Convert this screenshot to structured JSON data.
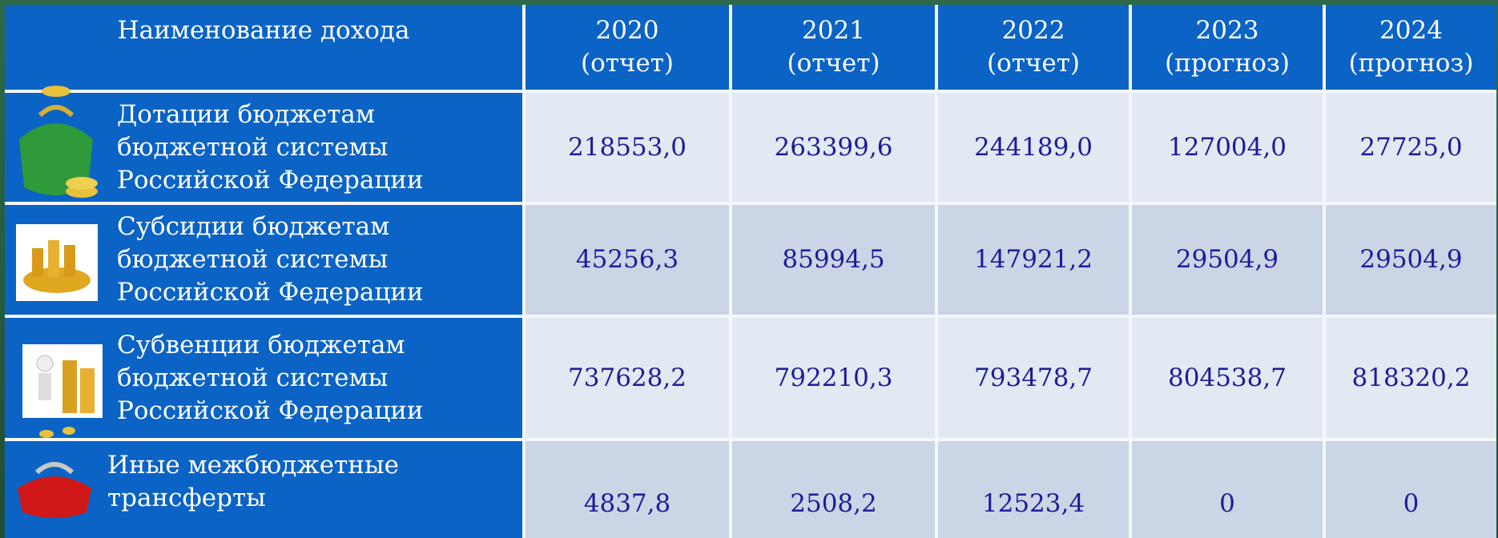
{
  "table": {
    "header": {
      "label": "Наименование дохода",
      "columns": [
        {
          "year": "2020",
          "note": "(отчет)"
        },
        {
          "year": "2021",
          "note": "(отчет)"
        },
        {
          "year": "2022",
          "note": "(отчет)"
        },
        {
          "year": "2023",
          "note": "(прогноз)"
        },
        {
          "year": "2024",
          "note": "(прогноз)"
        }
      ]
    },
    "rows": [
      {
        "label": [
          "Дотации бюджетам",
          "бюджетной системы",
          "Российской Федерации"
        ],
        "values": [
          "218553,0",
          "263399,6",
          "244189,0",
          "127004,0",
          "27725,0"
        ]
      },
      {
        "label": [
          "Субсидии бюджетам",
          "бюджетной системы",
          "Российской Федерации"
        ],
        "values": [
          "45256,3",
          "85994,5",
          "147921,2",
          "29504,9",
          "29504,9"
        ]
      },
      {
        "label": [
          "Субвенции бюджетам",
          "бюджетной системы",
          "Российской Федерации"
        ],
        "values": [
          "737628,2",
          "792210,3",
          "793478,7",
          "804538,7",
          "818320,2"
        ]
      },
      {
        "label": [
          "Иные межбюджетные",
          "трансферты"
        ],
        "values": [
          "4837,8",
          "2508,2",
          "12523,4",
          "0",
          "0"
        ]
      }
    ]
  }
}
